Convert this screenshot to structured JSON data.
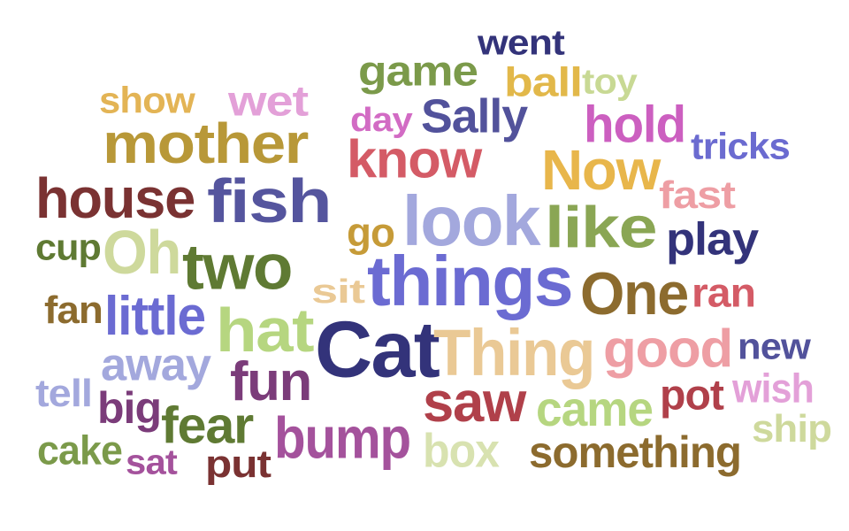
{
  "words": [
    {
      "text": "went",
      "color": "#33337a"
    },
    {
      "text": "game",
      "color": "#7b9a4a"
    },
    {
      "text": "ball",
      "color": "#e2b84a"
    },
    {
      "text": "toy",
      "color": "#c8d994"
    },
    {
      "text": "show",
      "color": "#e3b455"
    },
    {
      "text": "wet",
      "color": "#e3a0d8"
    },
    {
      "text": "day",
      "color": "#d26bc4"
    },
    {
      "text": "Sally",
      "color": "#52529b"
    },
    {
      "text": "hold",
      "color": "#cc5fc0"
    },
    {
      "text": "mother",
      "color": "#b89838"
    },
    {
      "text": "know",
      "color": "#d45b66"
    },
    {
      "text": "tricks",
      "color": "#6b6bd0"
    },
    {
      "text": "Now",
      "color": "#e8b64b"
    },
    {
      "text": "house",
      "color": "#7a3232"
    },
    {
      "text": "fish",
      "color": "#55559e"
    },
    {
      "text": "look",
      "color": "#a3a8dd"
    },
    {
      "text": "fast",
      "color": "#ee9ea4"
    },
    {
      "text": "like",
      "color": "#8aa654"
    },
    {
      "text": "go",
      "color": "#c69b38"
    },
    {
      "text": "cup",
      "color": "#5f7a33"
    },
    {
      "text": "Oh",
      "color": "#ced99c"
    },
    {
      "text": "two",
      "color": "#5f7a33"
    },
    {
      "text": "play",
      "color": "#33337a"
    },
    {
      "text": "things",
      "color": "#6b6bd2"
    },
    {
      "text": "sit",
      "color": "#eac995"
    },
    {
      "text": "One",
      "color": "#8c6b2e"
    },
    {
      "text": "ran",
      "color": "#d45b66"
    },
    {
      "text": "fan",
      "color": "#8c6b2e"
    },
    {
      "text": "little",
      "color": "#6b6bd2"
    },
    {
      "text": "hat",
      "color": "#b6d680"
    },
    {
      "text": "Cat",
      "color": "#33337a"
    },
    {
      "text": "Thing",
      "color": "#eac995"
    },
    {
      "text": "good",
      "color": "#ee9ea4"
    },
    {
      "text": "new",
      "color": "#52529b"
    },
    {
      "text": "away",
      "color": "#a3a8dd"
    },
    {
      "text": "tell",
      "color": "#a3a8dd"
    },
    {
      "text": "fun",
      "color": "#7b3c7a"
    },
    {
      "text": "saw",
      "color": "#b0404a"
    },
    {
      "text": "came",
      "color": "#b6d680"
    },
    {
      "text": "pot",
      "color": "#b0404a"
    },
    {
      "text": "wish",
      "color": "#e3a0d8"
    },
    {
      "text": "big",
      "color": "#7b3c7a"
    },
    {
      "text": "fear",
      "color": "#5f7a33"
    },
    {
      "text": "bump",
      "color": "#a4529c"
    },
    {
      "text": "ship",
      "color": "#ced99c"
    },
    {
      "text": "cake",
      "color": "#7b9a4a"
    },
    {
      "text": "sat",
      "color": "#a4529c"
    },
    {
      "text": "put",
      "color": "#7a3232"
    },
    {
      "text": "box",
      "color": "#d8e2b0"
    },
    {
      "text": "something",
      "color": "#8c6b2e"
    }
  ]
}
